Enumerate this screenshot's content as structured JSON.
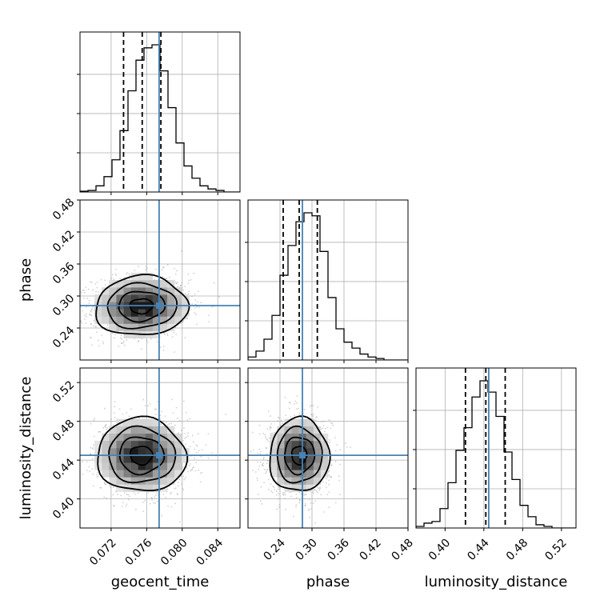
{
  "chart_data": {
    "type": "corner",
    "parameters": [
      {
        "name": "geocent_time",
        "label": "geocent_time",
        "range": [
          0.0685,
          0.0865
        ],
        "ticks": [
          "0.072",
          "0.076",
          "0.080",
          "0.084"
        ],
        "tick_values": [
          0.072,
          0.076,
          0.08,
          0.084
        ],
        "truth": 0.0774,
        "quantiles": [
          0.0734,
          0.0755,
          0.0776
        ],
        "hist_counts": [
          0.5,
          1,
          4,
          10,
          21,
          40,
          66,
          86,
          94,
          96,
          79,
          55,
          32,
          17,
          9,
          4,
          2,
          1,
          0,
          0
        ]
      },
      {
        "name": "phase",
        "label": "phase",
        "range": [
          0.18,
          0.48
        ],
        "ticks": [
          "0.24",
          "0.30",
          "0.36",
          "0.42",
          "0.48"
        ],
        "tick_values": [
          0.24,
          0.3,
          0.36,
          0.42,
          0.48
        ],
        "truth": 0.282,
        "quantiles": [
          0.246,
          0.276,
          0.31
        ],
        "hist_counts": [
          2,
          6,
          14,
          30,
          57,
          77,
          93,
          99,
          97,
          73,
          42,
          21,
          12,
          8,
          4,
          2,
          1,
          0,
          0,
          0
        ]
      },
      {
        "name": "luminosity_distance",
        "label": "luminosity_distance",
        "range": [
          0.37,
          0.535
        ],
        "ticks": [
          "0.40",
          "0.44",
          "0.48",
          "0.52"
        ],
        "tick_values": [
          0.4,
          0.44,
          0.48,
          0.52
        ],
        "truth": 0.445,
        "quantiles": [
          0.421,
          0.442,
          0.462
        ],
        "hist_counts": [
          1,
          3,
          4,
          12,
          28,
          48,
          62,
          81,
          91,
          84,
          69,
          47,
          30,
          14,
          7,
          2,
          1,
          0,
          0,
          0
        ]
      }
    ],
    "y_ticks": {
      "phase": [
        "0.24",
        "0.30",
        "0.36",
        "0.42",
        "0.48"
      ],
      "luminosity_distance": [
        "0.40",
        "0.44",
        "0.48",
        "0.52"
      ]
    },
    "contours": [
      {
        "x": "geocent_time",
        "y": "phase",
        "center": [
          0.0754,
          0.281
        ],
        "sigma": [
          0.0026,
          0.028
        ],
        "rho": 0.05
      },
      {
        "x": "geocent_time",
        "y": "luminosity_distance",
        "center": [
          0.0754,
          0.445
        ],
        "sigma": [
          0.0025,
          0.019
        ],
        "rho": -0.02
      },
      {
        "x": "phase",
        "y": "luminosity_distance",
        "center": [
          0.276,
          0.445
        ],
        "sigma": [
          0.028,
          0.019
        ],
        "rho": 0.02
      }
    ],
    "contour_levels": [
      0.5,
      1.0,
      1.5,
      2.0
    ],
    "grid": true,
    "truth_color": "#4682b4",
    "line_color": "#000000"
  }
}
